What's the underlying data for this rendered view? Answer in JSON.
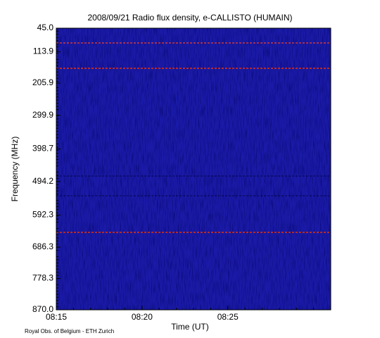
{
  "chart_data": {
    "type": "spectrogram",
    "title": "2008/09/21  Radio flux density, e-CALLISTO (HUMAIN)",
    "x_label": "Time (UT)",
    "y_label": "Frequency (MHz)",
    "footer": "Royal Obs. of Belgium - ETH Zurich",
    "xlim": [
      "08:15",
      "08:31"
    ],
    "xticks": [
      "08:15",
      "08:20",
      "08:25"
    ],
    "ylim": [
      870,
      45
    ],
    "yticks": [
      {
        "value": 45,
        "label": "45.0"
      },
      {
        "value": 113.9,
        "label": "113.9"
      },
      {
        "value": 205.9,
        "label": "205.9"
      },
      {
        "value": 299.9,
        "label": "299.9"
      },
      {
        "value": 398.7,
        "label": "398.7"
      },
      {
        "value": 494.2,
        "label": "494.2"
      },
      {
        "value": 592.3,
        "label": "592.3"
      },
      {
        "value": 686.3,
        "label": "686.3"
      },
      {
        "value": 778.3,
        "label": "778.3"
      },
      {
        "value": 870,
        "label": "870.0"
      }
    ],
    "color": "#1a1aa8"
  }
}
